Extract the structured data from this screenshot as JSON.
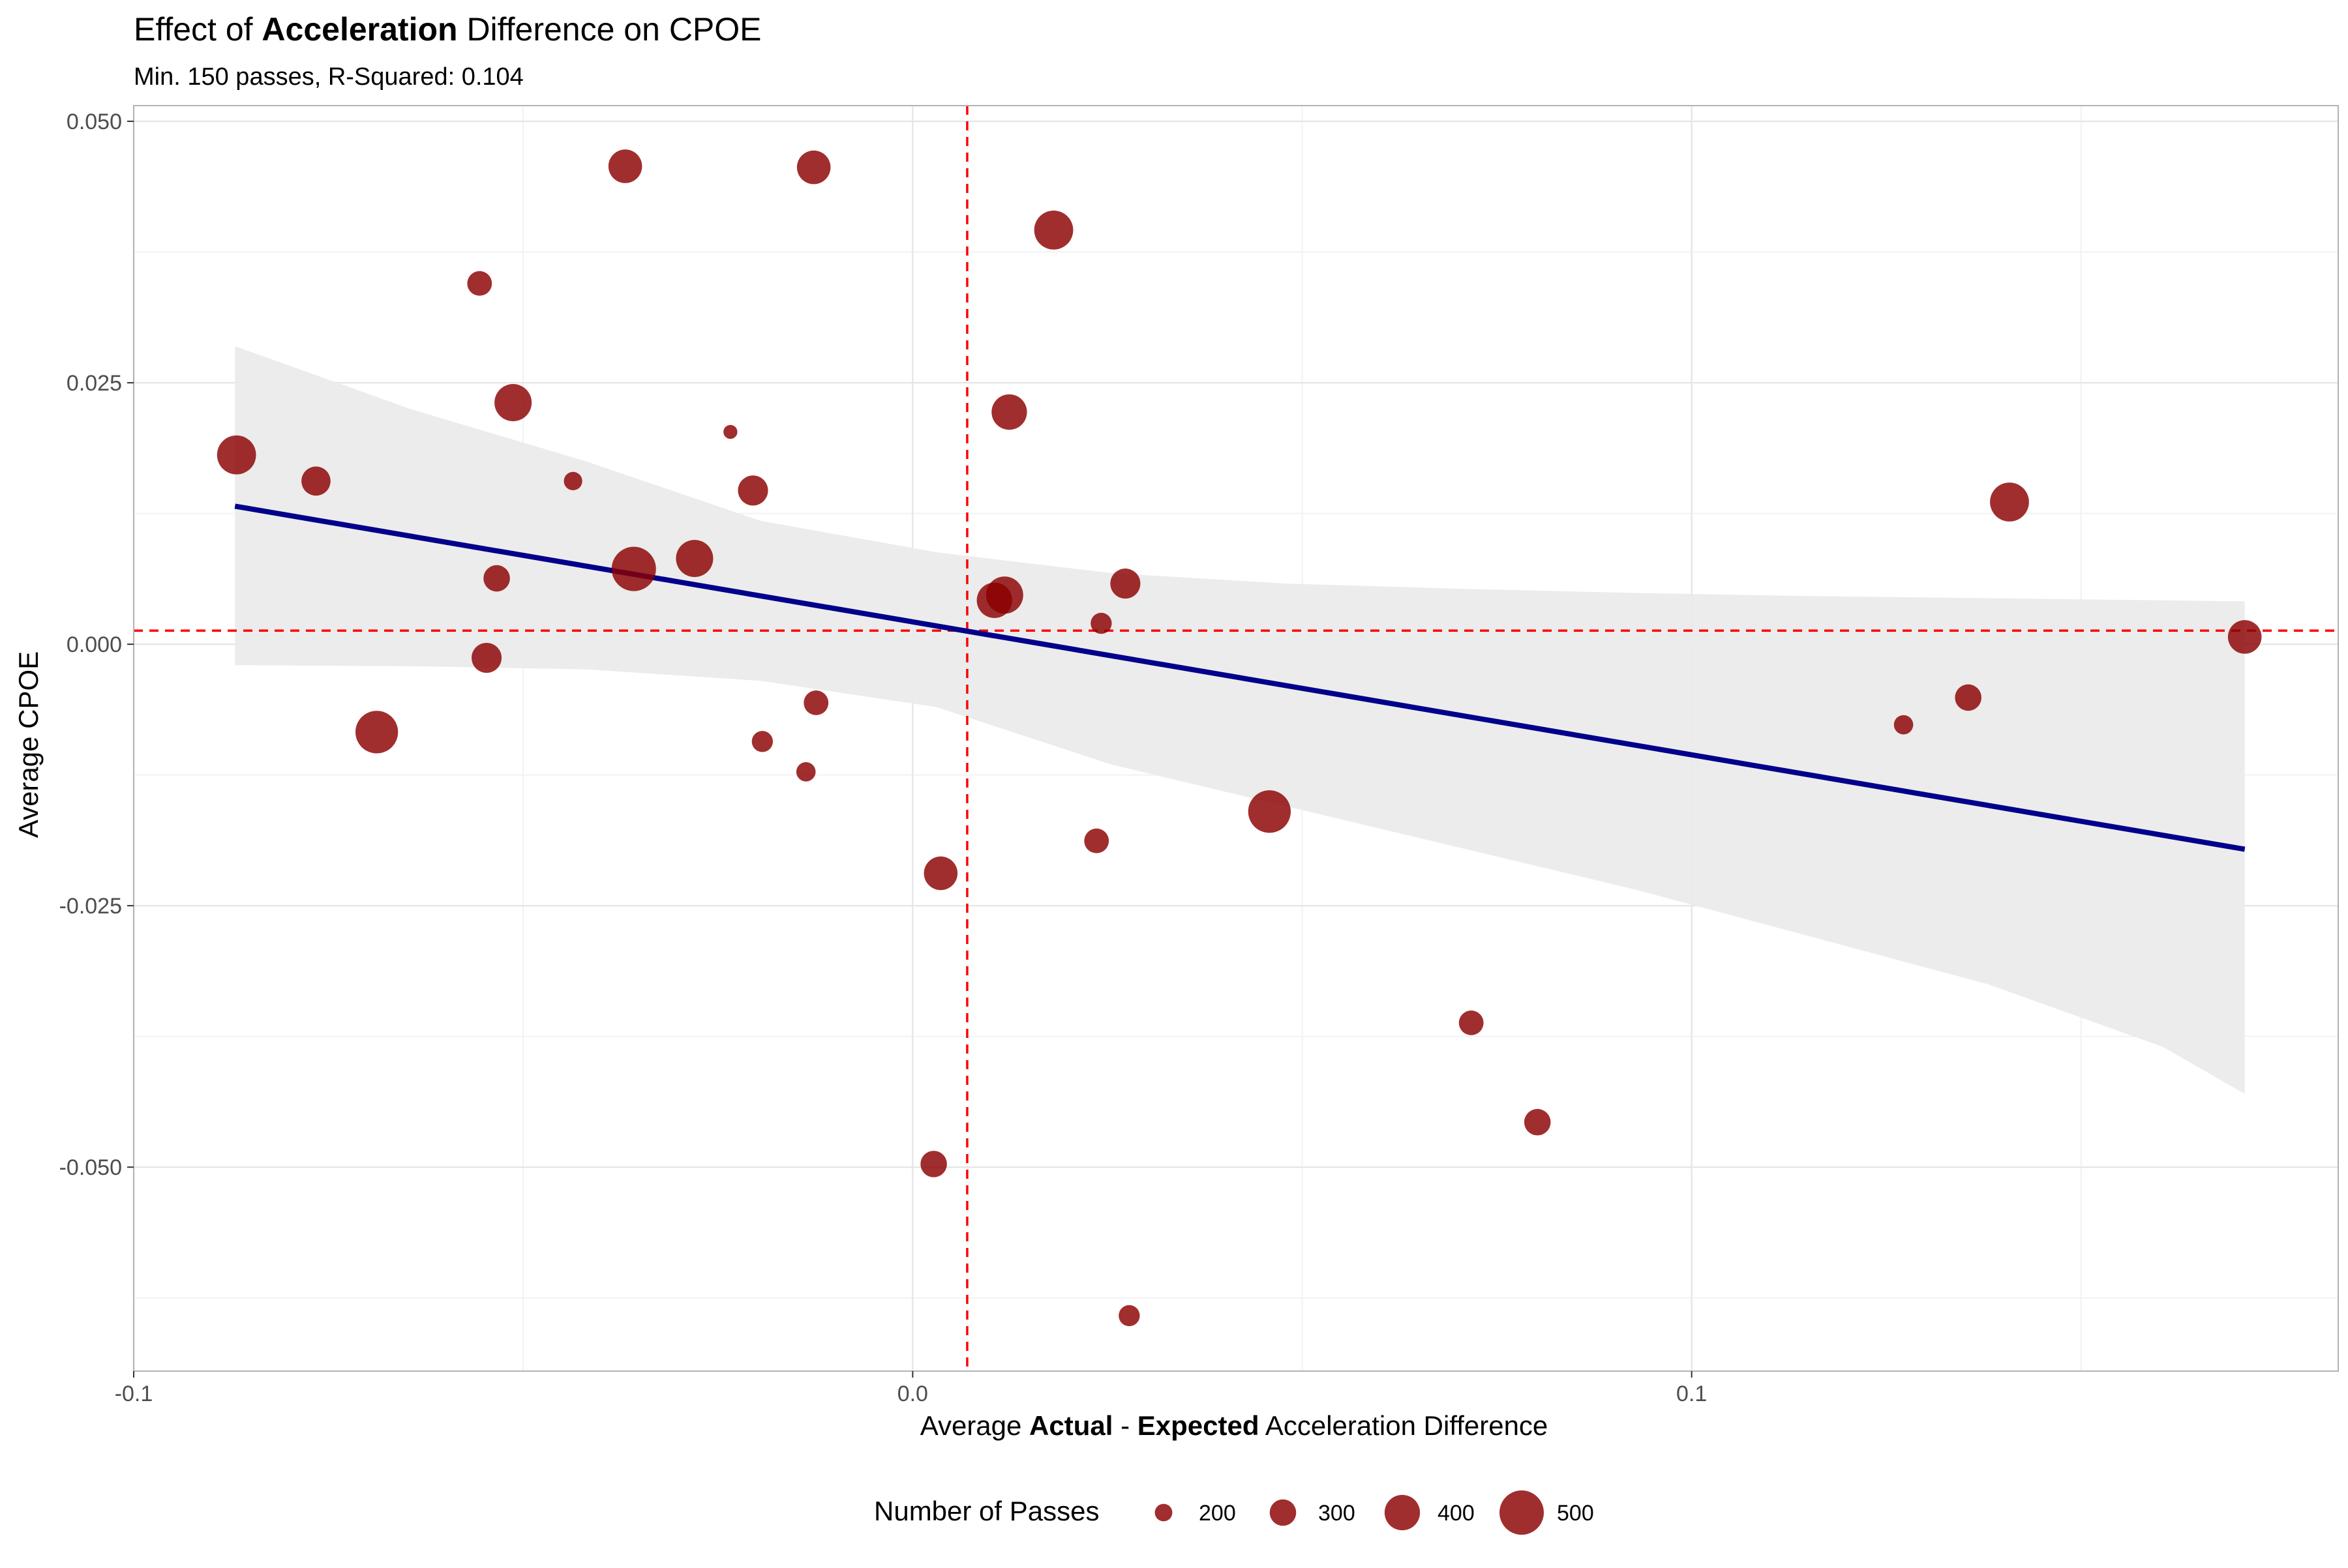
{
  "chart_data": {
    "type": "scatter",
    "title": {
      "prefix": "Effect of ",
      "bold": "Acceleration",
      "suffix": " Difference on CPOE"
    },
    "subtitle": "Min. 150 passes, R-Squared: 0.104",
    "xlabel": {
      "p1": "Average ",
      "b1": "Actual",
      "p2": " - ",
      "b2": "Expected",
      "p3": " Acceleration Difference"
    },
    "ylabel": "Average CPOE",
    "xlim": [
      -0.1,
      0.183
    ],
    "ylim": [
      -0.0695,
      0.0515
    ],
    "x_ticks": [
      {
        "value": -0.1,
        "label": "-0.1"
      },
      {
        "value": 0.0,
        "label": "0.0"
      },
      {
        "value": 0.1,
        "label": "0.1"
      }
    ],
    "y_ticks": [
      {
        "value": -0.05,
        "label": "-0.050"
      },
      {
        "value": -0.025,
        "label": "-0.025"
      },
      {
        "value": 0.0,
        "label": "0.000"
      },
      {
        "value": 0.025,
        "label": "0.025"
      },
      {
        "value": 0.05,
        "label": "0.050"
      }
    ],
    "grid": true,
    "point_color": "#8b0000",
    "reference_line_color": "#ff0000",
    "reference_lines": {
      "x": 0.007,
      "y": 0.0013
    },
    "regression": {
      "color": "#00008b",
      "band_color": "#ebebeb",
      "x": [
        -0.087,
        0.171
      ],
      "y": [
        0.0132,
        -0.0196
      ],
      "band": [
        {
          "x": -0.087,
          "lo": -0.002,
          "hi": 0.0285
        },
        {
          "x": -0.0645,
          "lo": -0.0021,
          "hi": 0.0225
        },
        {
          "x": -0.042,
          "lo": -0.0024,
          "hi": 0.0175
        },
        {
          "x": -0.0195,
          "lo": -0.0035,
          "hi": 0.0118
        },
        {
          "x": 0.003,
          "lo": -0.006,
          "hi": 0.0088
        },
        {
          "x": 0.0255,
          "lo": -0.0115,
          "hi": 0.0068
        },
        {
          "x": 0.048,
          "lo": -0.0155,
          "hi": 0.0058
        },
        {
          "x": 0.0705,
          "lo": -0.0195,
          "hi": 0.0053
        },
        {
          "x": 0.093,
          "lo": -0.0235,
          "hi": 0.0049
        },
        {
          "x": 0.1155,
          "lo": -0.028,
          "hi": 0.0046
        },
        {
          "x": 0.138,
          "lo": -0.0325,
          "hi": 0.0044
        },
        {
          "x": 0.1605,
          "lo": -0.0385,
          "hi": 0.0042
        },
        {
          "x": 0.171,
          "lo": -0.043,
          "hi": 0.0041
        }
      ]
    },
    "size_legend": {
      "title": "Number of Passes",
      "entries": [
        {
          "passes": 200,
          "label": "200"
        },
        {
          "passes": 300,
          "label": "300"
        },
        {
          "passes": 400,
          "label": "400"
        },
        {
          "passes": 500,
          "label": "500"
        }
      ]
    },
    "points": [
      {
        "x": -0.0868,
        "y": 0.0181,
        "passes": 440
      },
      {
        "x": -0.0766,
        "y": 0.0156,
        "passes": 330
      },
      {
        "x": -0.0688,
        "y": -0.0084,
        "passes": 480
      },
      {
        "x": -0.0556,
        "y": 0.0345,
        "passes": 280
      },
      {
        "x": -0.0547,
        "y": -0.0013,
        "passes": 340
      },
      {
        "x": -0.0534,
        "y": 0.0063,
        "passes": 300
      },
      {
        "x": -0.0513,
        "y": 0.0231,
        "passes": 420
      },
      {
        "x": -0.0436,
        "y": 0.0156,
        "passes": 210
      },
      {
        "x": -0.0369,
        "y": 0.0457,
        "passes": 380
      },
      {
        "x": -0.0358,
        "y": 0.0072,
        "passes": 500
      },
      {
        "x": -0.028,
        "y": 0.0082,
        "passes": 420
      },
      {
        "x": -0.0234,
        "y": 0.0203,
        "passes": 160
      },
      {
        "x": -0.0205,
        "y": 0.0147,
        "passes": 340
      },
      {
        "x": -0.0193,
        "y": -0.0093,
        "passes": 240
      },
      {
        "x": -0.0137,
        "y": -0.0122,
        "passes": 220
      },
      {
        "x": -0.0127,
        "y": 0.0456,
        "passes": 380
      },
      {
        "x": -0.0124,
        "y": -0.0056,
        "passes": 280
      },
      {
        "x": 0.0027,
        "y": -0.0497,
        "passes": 300
      },
      {
        "x": 0.0036,
        "y": -0.0219,
        "passes": 380
      },
      {
        "x": 0.0105,
        "y": 0.0042,
        "passes": 400
      },
      {
        "x": 0.0118,
        "y": 0.0047,
        "passes": 420
      },
      {
        "x": 0.0124,
        "y": 0.0222,
        "passes": 400
      },
      {
        "x": 0.0181,
        "y": 0.0396,
        "passes": 440
      },
      {
        "x": 0.0236,
        "y": -0.0188,
        "passes": 280
      },
      {
        "x": 0.0242,
        "y": 0.002,
        "passes": 240
      },
      {
        "x": 0.0273,
        "y": 0.0058,
        "passes": 340
      },
      {
        "x": 0.0278,
        "y": -0.0642,
        "passes": 240
      },
      {
        "x": 0.0458,
        "y": -0.016,
        "passes": 480
      },
      {
        "x": 0.0717,
        "y": -0.0362,
        "passes": 280
      },
      {
        "x": 0.0802,
        "y": -0.0457,
        "passes": 300
      },
      {
        "x": 0.1272,
        "y": -0.0077,
        "passes": 220
      },
      {
        "x": 0.1355,
        "y": -0.0051,
        "passes": 300
      },
      {
        "x": 0.1408,
        "y": 0.0136,
        "passes": 440
      },
      {
        "x": 0.171,
        "y": 0.0007,
        "passes": 380
      }
    ]
  }
}
